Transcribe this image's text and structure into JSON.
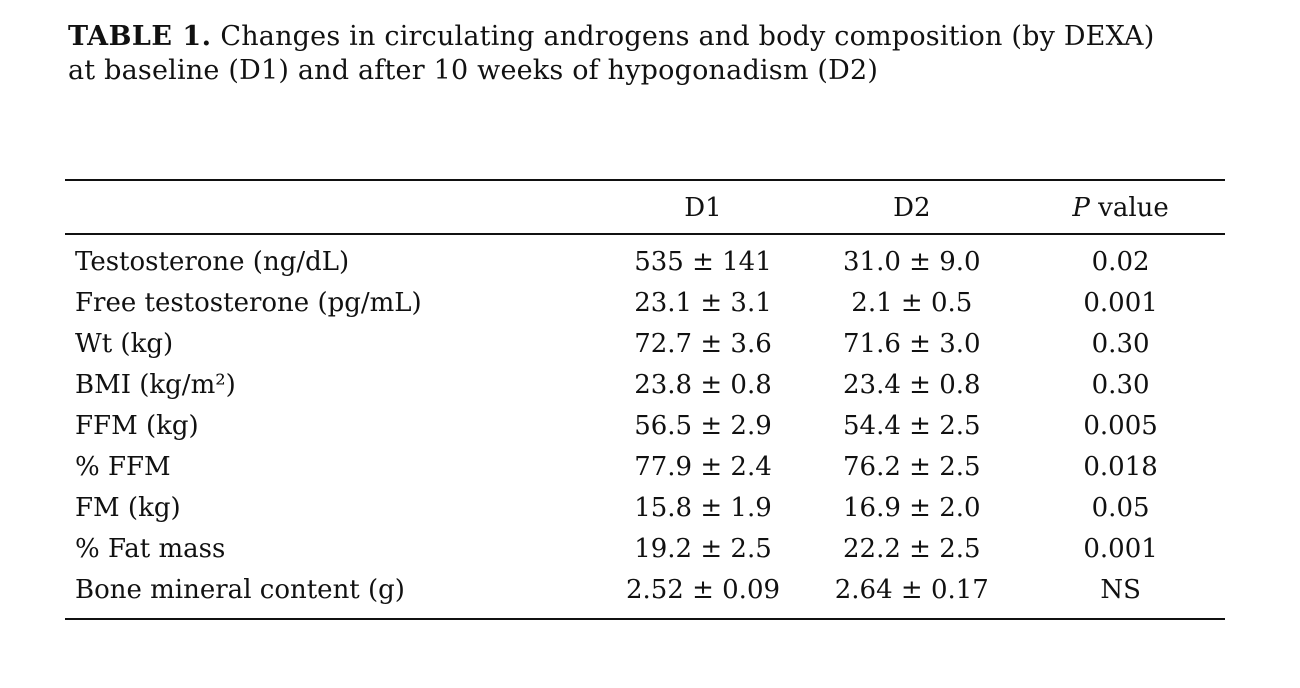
{
  "caption": {
    "label": "TABLE 1.",
    "text": " Changes in circulating androgens and body composition (by DEXA) at baseline (D1) and after 10 weeks of hypogonadism (D2)"
  },
  "table": {
    "headers": {
      "label": "",
      "d1": "D1",
      "d2": "D2",
      "p_italic": "P",
      "p_rest": " value"
    },
    "rows": [
      {
        "label": "Testosterone (ng/dL)",
        "d1": "535 ± 141",
        "d2": "31.0 ± 9.0",
        "p": "0.02"
      },
      {
        "label": "Free testosterone (pg/mL)",
        "d1": "23.1 ± 3.1",
        "d2": "2.1 ± 0.5",
        "p": "0.001"
      },
      {
        "label": "Wt (kg)",
        "d1": "72.7 ± 3.6",
        "d2": "71.6 ± 3.0",
        "p": "0.30"
      },
      {
        "label": "BMI (kg/m²)",
        "d1": "23.8 ± 0.8",
        "d2": "23.4 ± 0.8",
        "p": "0.30"
      },
      {
        "label": "FFM (kg)",
        "d1": "56.5 ± 2.9",
        "d2": "54.4 ± 2.5",
        "p": "0.005"
      },
      {
        "label": "% FFM",
        "d1": "77.9 ± 2.4",
        "d2": "76.2 ± 2.5",
        "p": "0.018"
      },
      {
        "label": "FM (kg)",
        "d1": "15.8 ± 1.9",
        "d2": "16.9 ± 2.0",
        "p": "0.05"
      },
      {
        "label": "% Fat mass",
        "d1": "19.2 ± 2.5",
        "d2": "22.2 ± 2.5",
        "p": "0.001"
      },
      {
        "label": "Bone mineral content (g)",
        "d1": "2.52 ± 0.09",
        "d2": "2.64 ± 0.17",
        "p": "NS"
      }
    ]
  }
}
